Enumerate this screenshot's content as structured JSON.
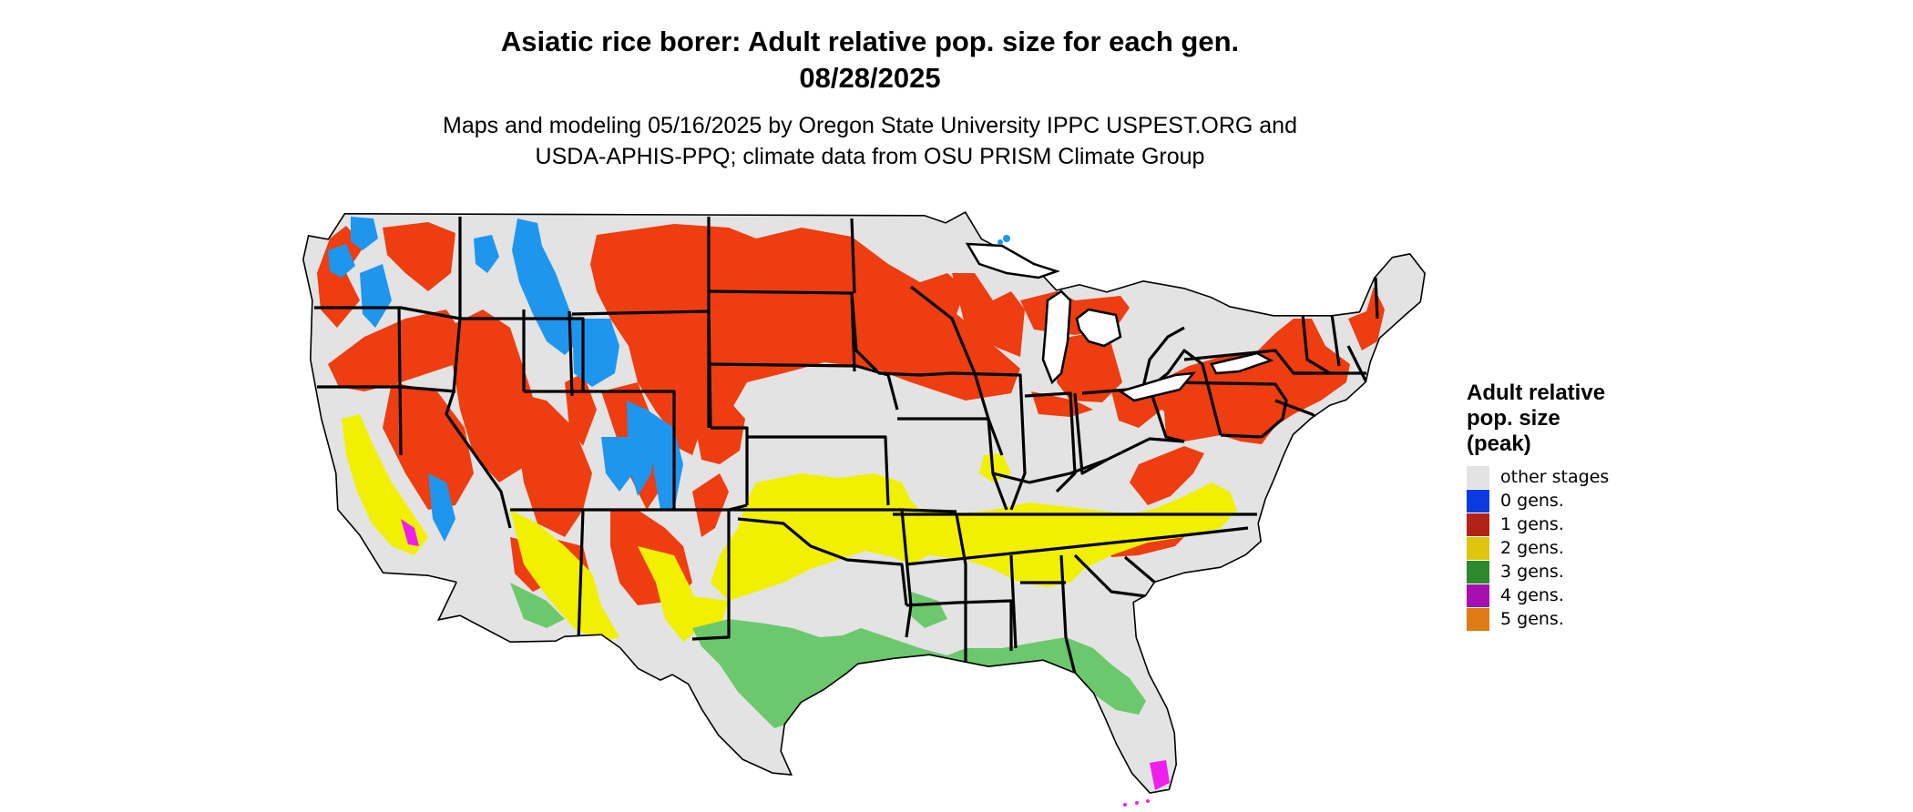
{
  "title": {
    "line1": "Asiatic rice borer: Adult relative pop. size for each gen.",
    "line2": "08/28/2025"
  },
  "subtitle": {
    "line1": "Maps and modeling 05/16/2025 by Oregon State University IPPC USPEST.ORG and",
    "line2": "USDA-APHIS-PPQ; climate data from OSU PRISM Climate Group"
  },
  "legend": {
    "title_lines": [
      "Adult relative",
      "pop. size",
      "(peak)"
    ],
    "items": [
      {
        "label": "other stages",
        "color": "#e3e3e3"
      },
      {
        "label": "0 gens.",
        "color": "#0a3ae0"
      },
      {
        "label": "1 gens.",
        "color": "#b02418"
      },
      {
        "label": "2 gens.",
        "color": "#e1c40c"
      },
      {
        "label": "3 gens.",
        "color": "#2c8a2c"
      },
      {
        "label": "4 gens.",
        "color": "#a80fb0"
      },
      {
        "label": "5 gens.",
        "color": "#df7a14"
      }
    ]
  },
  "map_colors": {
    "base": "#e3e3e3",
    "gen1_area": "#ee3d10",
    "gen0_area": "#1e96ee",
    "gen2_area": "#f1f000",
    "gen3_area": "#6cc86c",
    "gen4_area": "#ee20ee",
    "border": "#000000"
  }
}
